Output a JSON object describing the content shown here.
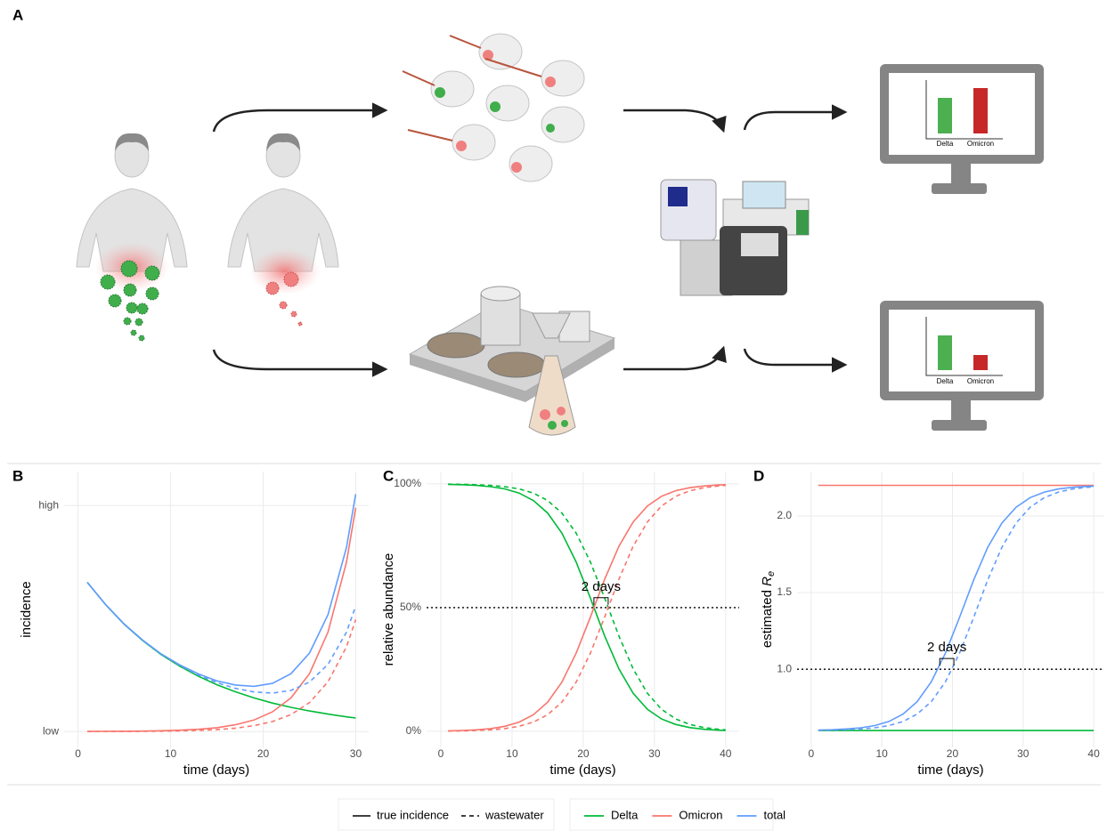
{
  "panel_a": {
    "label": "A",
    "monitors": [
      {
        "labels": [
          "Delta",
          "Omicron"
        ]
      },
      {
        "labels": [
          "Delta",
          "Omicron"
        ]
      }
    ]
  },
  "chart_data": [
    {
      "panel": "B",
      "type": "line",
      "xlabel": "time (days)",
      "ylabel": "incidence",
      "x": [
        1,
        3,
        5,
        7,
        9,
        11,
        13,
        15,
        17,
        19,
        21,
        23,
        25,
        27,
        29,
        30
      ],
      "series": [
        {
          "variant": "Delta",
          "measure": "true incidence",
          "values": [
            0.66,
            0.56,
            0.474,
            0.402,
            0.34,
            0.289,
            0.245,
            0.207,
            0.176,
            0.149,
            0.126,
            0.107,
            0.091,
            0.077,
            0.065,
            0.06
          ]
        },
        {
          "variant": "Omicron",
          "measure": "true incidence",
          "values": [
            0.0004,
            0.0007,
            0.0012,
            0.002,
            0.0034,
            0.0058,
            0.01,
            0.017,
            0.03,
            0.051,
            0.087,
            0.149,
            0.256,
            0.44,
            0.75,
            0.99
          ]
        },
        {
          "variant": "total",
          "measure": "true incidence",
          "values": [
            0.66,
            0.561,
            0.475,
            0.404,
            0.343,
            0.295,
            0.255,
            0.224,
            0.206,
            0.2,
            0.213,
            0.256,
            0.347,
            0.517,
            0.815,
            1.05
          ]
        },
        {
          "variant": "Omicron",
          "measure": "wastewater",
          "values": [
            0.0002,
            0.0004,
            0.0006,
            0.001,
            0.0017,
            0.0029,
            0.005,
            0.0085,
            0.015,
            0.026,
            0.044,
            0.075,
            0.128,
            0.22,
            0.375,
            0.495
          ]
        },
        {
          "variant": "total",
          "measure": "wastewater",
          "values": [
            0.66,
            0.56,
            0.475,
            0.403,
            0.342,
            0.292,
            0.25,
            0.216,
            0.191,
            0.175,
            0.17,
            0.182,
            0.219,
            0.297,
            0.44,
            0.555
          ]
        }
      ],
      "xlim": [
        -1.5,
        31.4
      ],
      "ylim": [
        -0.07,
        1.15
      ],
      "xticks": [
        0,
        10,
        20,
        30
      ],
      "yticks": [
        {
          "value": 0,
          "label": "low"
        },
        {
          "value": 1,
          "label": "high"
        }
      ],
      "grid": true
    },
    {
      "panel": "C",
      "type": "line",
      "xlabel": "time (days)",
      "ylabel": "relative abundance",
      "x": [
        1,
        3,
        5,
        7,
        9,
        11,
        13,
        15,
        17,
        19,
        21,
        23,
        25,
        27,
        29,
        31,
        33,
        35,
        37,
        39,
        40
      ],
      "series": [
        {
          "variant": "Delta",
          "measure": "true incidence",
          "values": [
            99.83,
            99.68,
            99.4,
            98.9,
            97.97,
            96.29,
            93.31,
            88.24,
            80.14,
            68.46,
            53.87,
            38.58,
            25.26,
            15.38,
            8.91,
            4.99,
            2.75,
            1.5,
            0.81,
            0.44,
            0.32
          ]
        },
        {
          "variant": "Delta",
          "measure": "wastewater",
          "values": [
            99.91,
            99.83,
            99.68,
            99.4,
            98.9,
            97.97,
            96.29,
            93.31,
            88.24,
            80.14,
            68.46,
            53.87,
            38.58,
            25.26,
            15.38,
            8.91,
            4.99,
            2.75,
            1.5,
            0.81,
            0.6
          ]
        },
        {
          "variant": "Omicron",
          "measure": "true incidence",
          "values": [
            0.17,
            0.32,
            0.6,
            1.1,
            2.03,
            3.71,
            6.69,
            11.76,
            19.86,
            31.54,
            46.13,
            61.42,
            74.74,
            84.62,
            91.09,
            95.01,
            97.25,
            98.5,
            99.19,
            99.56,
            99.68
          ]
        },
        {
          "variant": "Omicron",
          "measure": "wastewater",
          "values": [
            0.09,
            0.17,
            0.32,
            0.6,
            1.1,
            2.03,
            3.71,
            6.69,
            11.76,
            19.86,
            31.54,
            46.13,
            61.42,
            74.74,
            84.62,
            91.09,
            95.01,
            97.25,
            98.5,
            99.19,
            99.4
          ]
        }
      ],
      "xlim": [
        -2,
        41.9
      ],
      "ylim": [
        -6.5,
        105
      ],
      "xticks": [
        0,
        10,
        20,
        30,
        40
      ],
      "yticks": [
        {
          "value": 0,
          "label": "0%"
        },
        {
          "value": 50,
          "label": "50%"
        },
        {
          "value": 100,
          "label": "100%"
        }
      ],
      "grid": true,
      "hline": 50,
      "annotation": {
        "text": "2 days",
        "x": [
          21.5,
          23.5
        ],
        "y": 54
      }
    },
    {
      "panel": "D",
      "type": "line",
      "xlabel": "time (days)",
      "ylabel": {
        "text": "estimated ",
        "symbol": "R",
        "subscript": "e"
      },
      "x": [
        1,
        3,
        5,
        7,
        9,
        11,
        13,
        15,
        17,
        19,
        21,
        23,
        25,
        27,
        29,
        31,
        33,
        35,
        37,
        39,
        40
      ],
      "series": [
        {
          "variant": "Delta",
          "measure": "true incidence",
          "values": [
            0.6,
            0.6,
            0.6,
            0.6,
            0.6,
            0.6,
            0.6,
            0.6,
            0.6,
            0.6,
            0.6,
            0.6,
            0.6,
            0.6,
            0.6,
            0.6,
            0.6,
            0.6,
            0.6,
            0.6,
            0.6
          ]
        },
        {
          "variant": "Omicron",
          "measure": "true incidence",
          "values": [
            2.2,
            2.2,
            2.2,
            2.2,
            2.2,
            2.2,
            2.2,
            2.2,
            2.2,
            2.2,
            2.2,
            2.2,
            2.2,
            2.2,
            2.2,
            2.2,
            2.2,
            2.2,
            2.2,
            2.2,
            2.2
          ]
        },
        {
          "variant": "total",
          "measure": "true incidence",
          "values": [
            0.603,
            0.605,
            0.61,
            0.618,
            0.632,
            0.659,
            0.707,
            0.788,
            0.918,
            1.105,
            1.338,
            1.583,
            1.796,
            1.954,
            2.057,
            2.12,
            2.156,
            2.176,
            2.187,
            2.193,
            2.195
          ]
        },
        {
          "variant": "total",
          "measure": "wastewater",
          "values": [
            0.601,
            0.603,
            0.605,
            0.61,
            0.618,
            0.632,
            0.659,
            0.707,
            0.788,
            0.918,
            1.105,
            1.338,
            1.583,
            1.796,
            1.954,
            2.057,
            2.12,
            2.156,
            2.176,
            2.187,
            2.19
          ]
        }
      ],
      "xlim": [
        -2,
        41.5
      ],
      "ylim": [
        0.49,
        2.29
      ],
      "xticks": [
        0,
        10,
        20,
        30,
        40
      ],
      "yticks": [
        {
          "value": 1,
          "label": "1.0"
        },
        1.5,
        {
          "value": 2,
          "label": "2.0"
        }
      ],
      "grid": true,
      "hline": 1,
      "annotation": {
        "text": "2 days",
        "x": [
          18.2,
          20.2
        ],
        "y": 1.07
      }
    }
  ],
  "legend": {
    "linetypes": [
      {
        "name": "true incidence",
        "dash": "solid"
      },
      {
        "name": "wastewater",
        "dash": "dashed"
      }
    ],
    "colors": [
      {
        "name": "Delta",
        "color": "#00BA38"
      },
      {
        "name": "Omicron",
        "color": "#F8766D"
      },
      {
        "name": "total",
        "color": "#619CFF"
      }
    ]
  }
}
